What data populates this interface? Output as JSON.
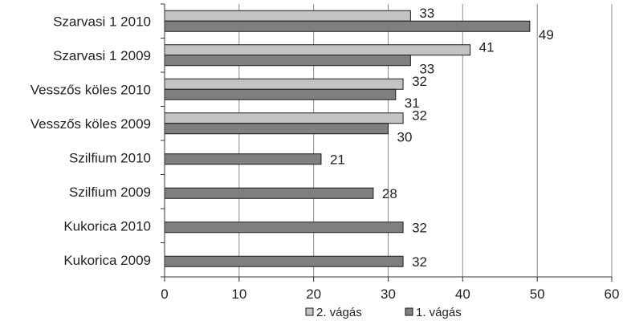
{
  "chart_data": {
    "type": "bar",
    "orientation": "horizontal",
    "categories": [
      "Szarvasi 1 2010",
      "Szarvasi 1 2009",
      "Vesszős köles 2010",
      "Vesszős köles 2009",
      "Szilfium 2010",
      "Szilfium 2009",
      "Kukorica 2010",
      "Kukorica 2009"
    ],
    "series": [
      {
        "name": "2. vágás",
        "color": "#c4c4c4",
        "values": [
          33,
          41,
          32,
          32,
          null,
          null,
          null,
          null
        ]
      },
      {
        "name": "1. vágás",
        "color": "#7f7f7f",
        "values": [
          49,
          33,
          31,
          30,
          21,
          28,
          32,
          32
        ]
      }
    ],
    "xlim": [
      0,
      60
    ],
    "xticks": [
      0,
      10,
      20,
      30,
      40,
      50,
      60
    ],
    "title": "",
    "xlabel": "",
    "ylabel": "",
    "grid": "vertical",
    "legend_position": "bottom",
    "data_labels": true
  }
}
